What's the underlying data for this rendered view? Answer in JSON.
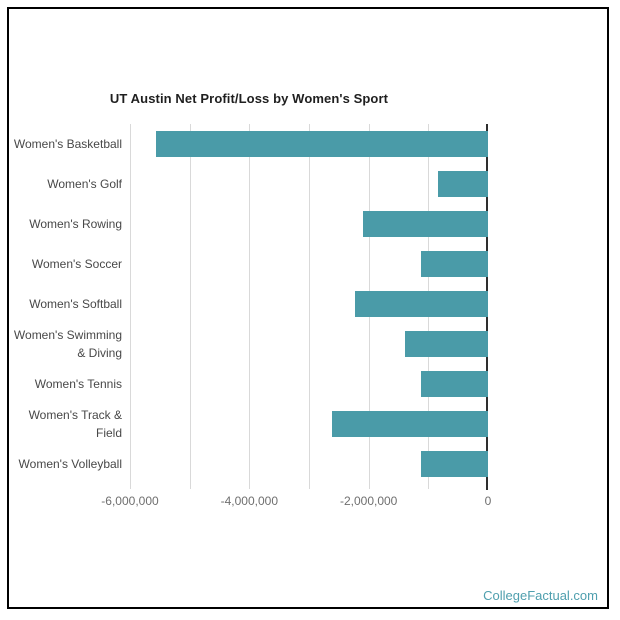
{
  "chart_data": {
    "type": "bar",
    "orientation": "horizontal",
    "title": "UT Austin Net Profit/Loss by Women's Sport",
    "xlabel": "",
    "ylabel": "",
    "categories": [
      "Women's Basketball",
      "Women's Golf",
      "Women's Rowing",
      "Women's Soccer",
      "Women's Softball",
      "Women's Swimming & Diving",
      "Women's Tennis",
      "Women's Track & Field",
      "Women's Volleyball"
    ],
    "category_display": [
      "Women's Basketball",
      "Women's Golf",
      "Women's Rowing",
      "Women's Soccer",
      "Women's Softball",
      "Women's Swimming\n& Diving",
      "Women's Tennis",
      "Women's Track &\nField",
      "Women's Volleyball"
    ],
    "values": [
      -5570000,
      -840000,
      -2090000,
      -1130000,
      -2230000,
      -1390000,
      -1130000,
      -2610000,
      -1130000
    ],
    "xlim": [
      -6000000,
      0
    ],
    "x_tick_values": [
      -6000000,
      -4000000,
      -2000000,
      0
    ],
    "x_tick_labels": [
      "-6,000,000",
      "-4,000,000",
      "-2,000,000",
      "0"
    ],
    "gridline_values": [
      -6000000,
      -5000000,
      -4000000,
      -3000000,
      -2000000,
      -1000000
    ],
    "grid": true,
    "legend": false,
    "bar_color": "#4a9ba8",
    "axis_color": "#2e2e2e",
    "gridline_color": "#d9d9d9"
  },
  "footer": {
    "attribution": "CollegeFactual.com",
    "color": "#4f9fae"
  },
  "page": {
    "background": "#ffffff",
    "border_color": "#000000"
  }
}
